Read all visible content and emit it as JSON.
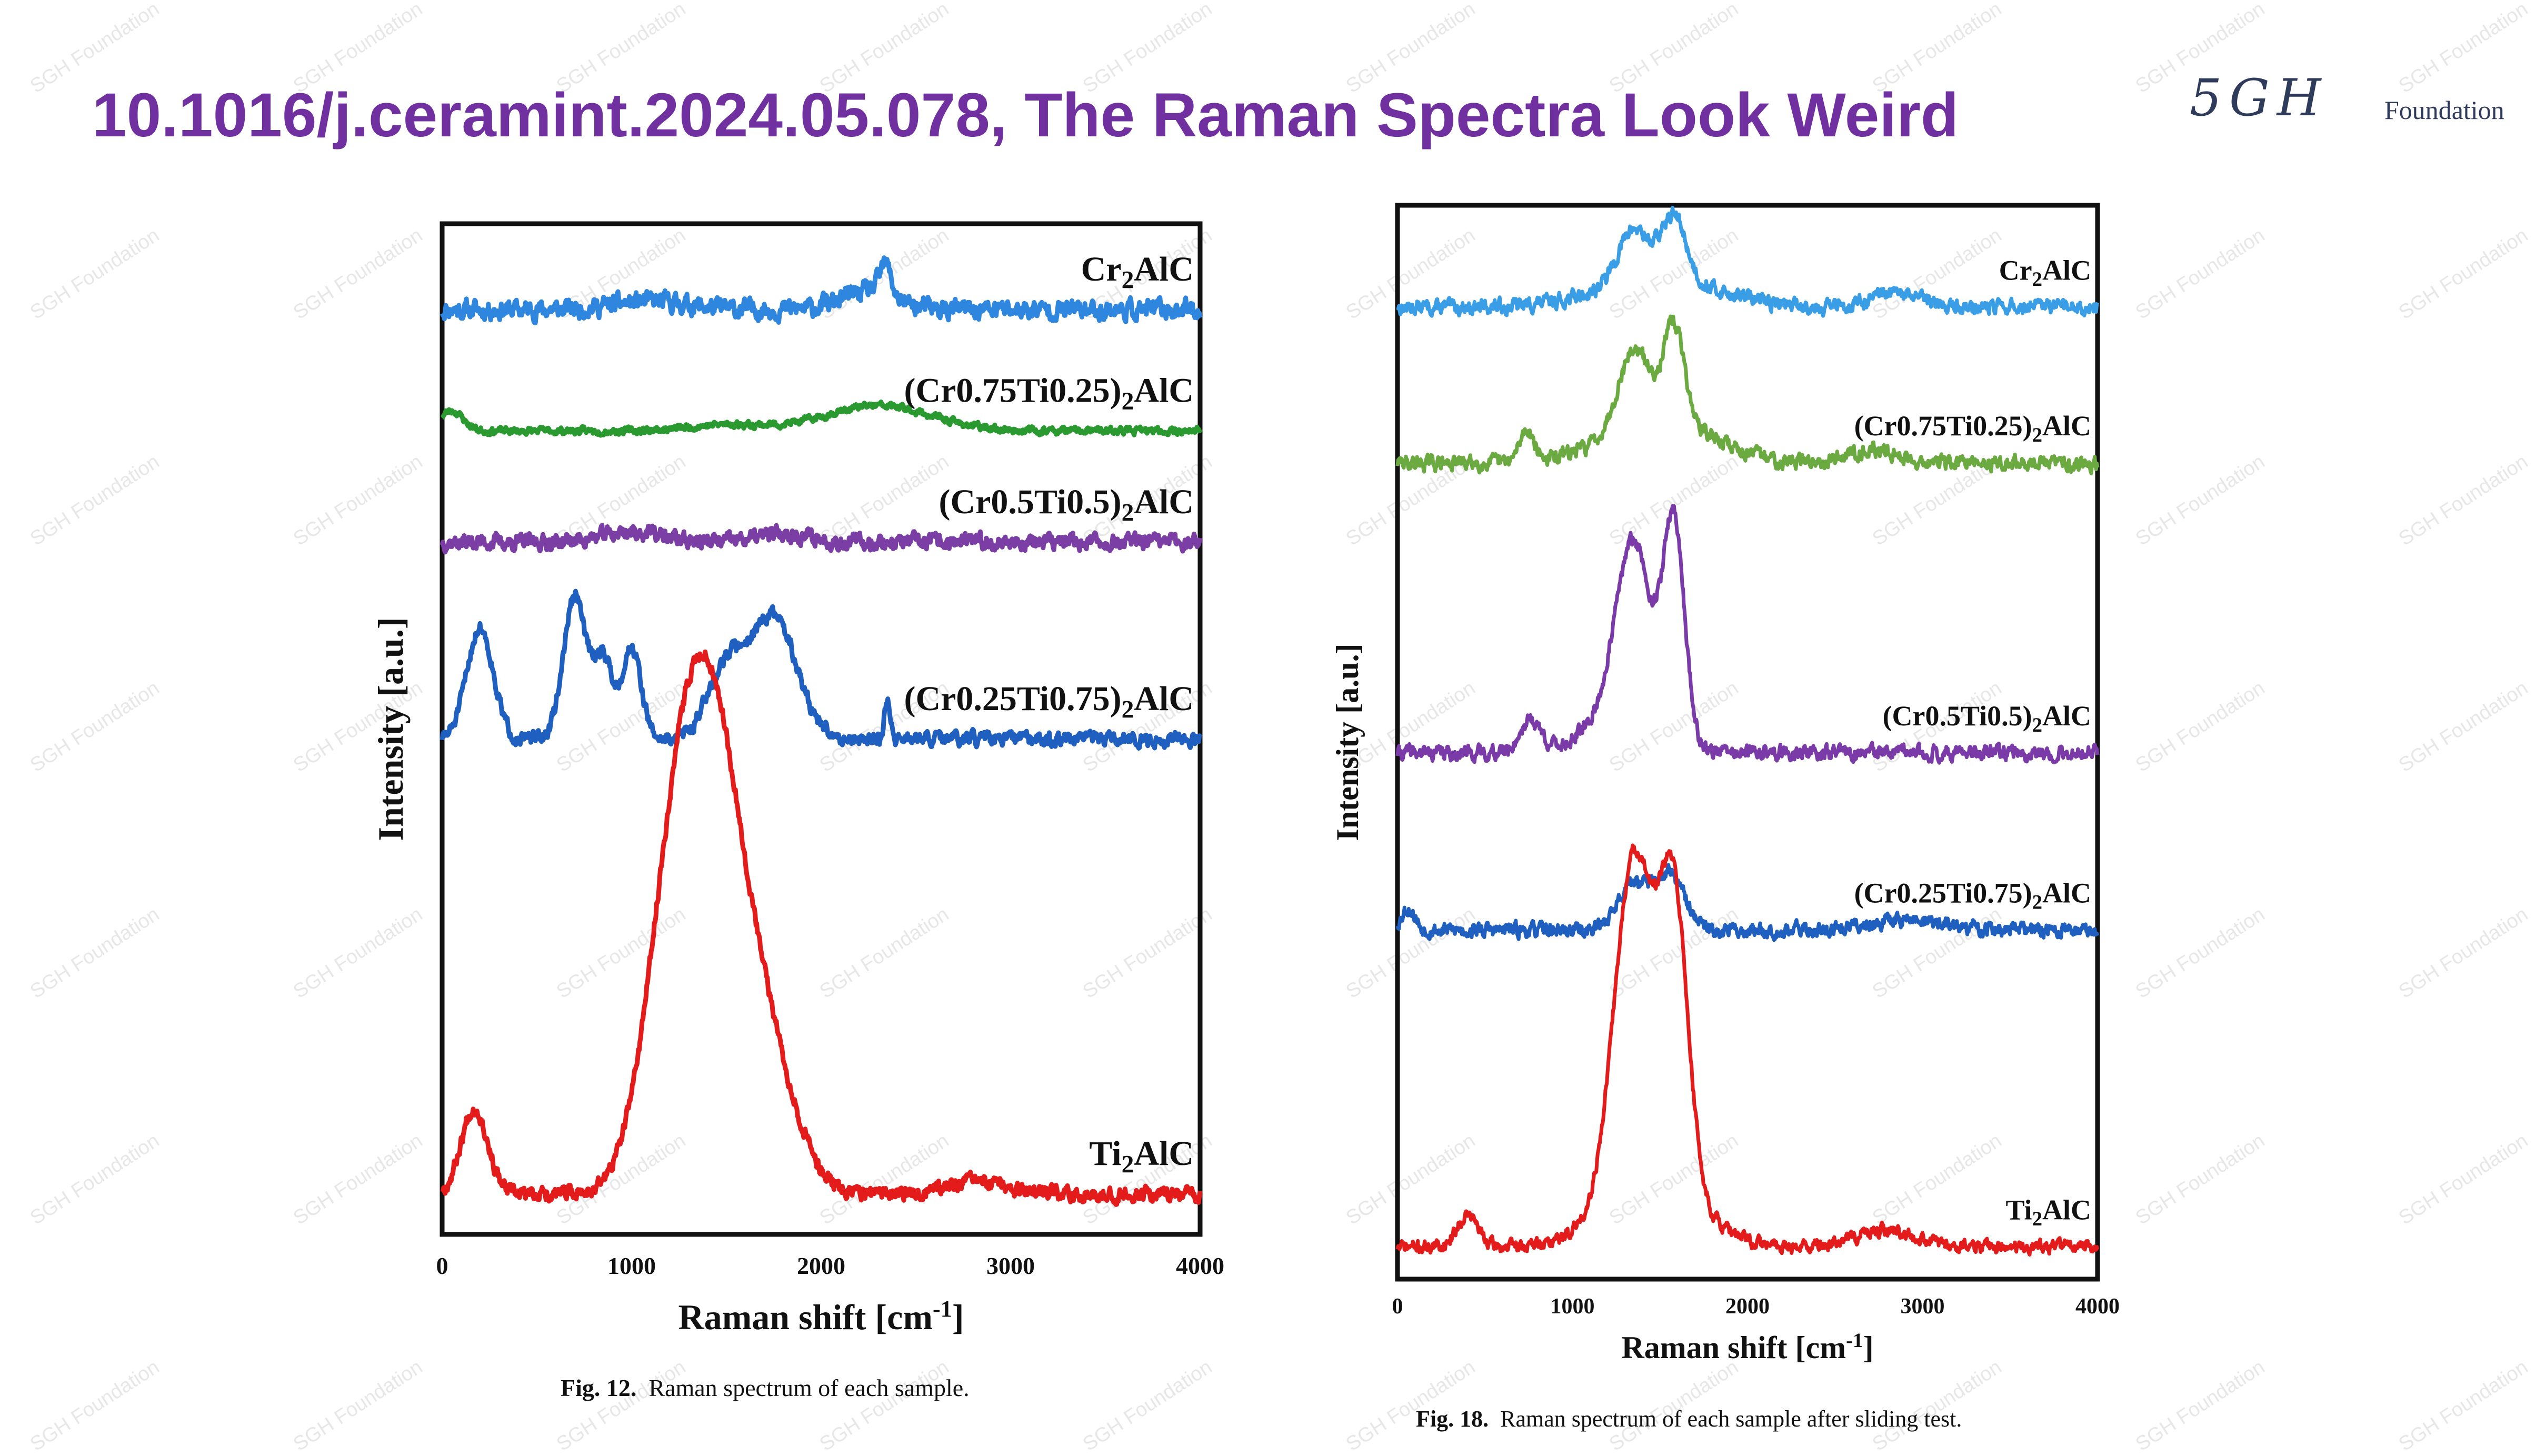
{
  "header": {
    "title": "10.1016/j.ceramint.2024.05.078, The Raman Spectra Look Weird",
    "logo_mark": "5GH",
    "logo_word": "Foundation"
  },
  "watermark_text": "SGH Foundation",
  "chart_data": [
    {
      "type": "line",
      "caption_label": "Fig. 12.",
      "caption_text": "Raman spectrum of each sample.",
      "xlabel": "Raman shift [cm",
      "xlabel_sup": "-1",
      "xlabel_end": "]",
      "ylabel": "Intensity [a.u.]",
      "xlim": [
        0,
        4000
      ],
      "xticks": [
        0,
        1000,
        2000,
        3000,
        4000
      ],
      "grid": false,
      "series": [
        {
          "name_parts": [
            "Cr",
            "2",
            "AlC"
          ],
          "color": "#2e86de",
          "baseline": 0.915,
          "noise": 0.011,
          "seed": 11,
          "peaks": [
            [
              2250,
              0.018,
              140
            ],
            [
              2340,
              0.03,
              30
            ],
            [
              1100,
              0.008,
              200
            ]
          ]
        },
        {
          "name_parts": [
            "(Cr0.75Ti0.25)",
            "2",
            "AlC"
          ],
          "color": "#2a9a30",
          "baseline": 0.795,
          "noise": 0.004,
          "seed": 23,
          "peaks": [
            [
              50,
              0.02,
              60
            ],
            [
              2300,
              0.025,
              280
            ],
            [
              1500,
              0.006,
              200
            ]
          ]
        },
        {
          "name_parts": [
            "(Cr0.5Ti0.5)",
            "2",
            "AlC"
          ],
          "color": "#7b3ea5",
          "baseline": 0.685,
          "noise": 0.009,
          "seed": 37,
          "peaks": [
            [
              1000,
              0.01,
              160
            ],
            [
              1800,
              0.008,
              140
            ]
          ]
        },
        {
          "name_parts": [
            "(Cr0.25Ti0.75)",
            "2",
            "AlC"
          ],
          "color": "#1f5fbf",
          "baseline": 0.49,
          "noise": 0.008,
          "seed": 51,
          "peaks": [
            [
              200,
              0.11,
              70
            ],
            [
              700,
              0.14,
              60
            ],
            [
              850,
              0.08,
              50
            ],
            [
              1000,
              0.09,
              50
            ],
            [
              1500,
              0.07,
              100
            ],
            [
              1750,
              0.12,
              120
            ],
            [
              2350,
              0.04,
              15
            ]
          ]
        },
        {
          "name_parts": [
            "Ti",
            "2",
            "AlC"
          ],
          "color": "#e31b1b",
          "baseline": 0.04,
          "noise": 0.008,
          "seed": 67,
          "peaks": [
            [
              170,
              0.085,
              70
            ],
            [
              1250,
              0.33,
              160
            ],
            [
              1450,
              0.31,
              150
            ],
            [
              1700,
              0.14,
              160
            ],
            [
              2800,
              0.012,
              150
            ]
          ]
        }
      ]
    },
    {
      "type": "line",
      "caption_label": "Fig. 18.",
      "caption_text": "Raman spectrum of each sample after sliding test.",
      "xlabel": "Raman shift [cm",
      "xlabel_sup": "-1",
      "xlabel_end": "]",
      "ylabel": "Intensity [a.u.]",
      "xlim": [
        0,
        4000
      ],
      "xticks": [
        0,
        1000,
        2000,
        3000,
        4000
      ],
      "grid": false,
      "series": [
        {
          "name_parts": [
            "Cr",
            "2",
            "AlC"
          ],
          "color": "#3a9ee6",
          "baseline": 0.905,
          "noise": 0.008,
          "seed": 13,
          "peaks": [
            [
              1350,
              0.05,
              90
            ],
            [
              1580,
              0.06,
              70
            ],
            [
              1500,
              0.025,
              350
            ],
            [
              2850,
              0.012,
              150
            ]
          ]
        },
        {
          "name_parts": [
            "(Cr0.75Ti0.25)",
            "2",
            "AlC"
          ],
          "color": "#6aaa40",
          "baseline": 0.76,
          "noise": 0.008,
          "seed": 29,
          "peaks": [
            [
              740,
              0.03,
              40
            ],
            [
              1350,
              0.07,
              90
            ],
            [
              1580,
              0.09,
              60
            ],
            [
              1500,
              0.04,
              300
            ],
            [
              2700,
              0.012,
              150
            ]
          ]
        },
        {
          "name_parts": [
            "(Cr0.5Ti0.5)",
            "2",
            "AlC"
          ],
          "color": "#7a3aa8",
          "baseline": 0.49,
          "noise": 0.008,
          "seed": 41,
          "peaks": [
            [
              760,
              0.03,
              60
            ],
            [
              1350,
              0.16,
              100
            ],
            [
              1580,
              0.2,
              60
            ],
            [
              1300,
              0.04,
              200
            ]
          ]
        },
        {
          "name_parts": [
            "(Cr0.25Ti0.75)",
            "2",
            "AlC"
          ],
          "color": "#1f5fbf",
          "baseline": 0.325,
          "noise": 0.008,
          "seed": 53,
          "peaks": [
            [
              60,
              0.02,
              40
            ],
            [
              1350,
              0.045,
              90
            ],
            [
              1560,
              0.05,
              80
            ],
            [
              2900,
              0.01,
              200
            ]
          ]
        },
        {
          "name_parts": [
            "Ti",
            "2",
            "AlC"
          ],
          "color": "#e31b1b",
          "baseline": 0.03,
          "noise": 0.007,
          "seed": 71,
          "peaks": [
            [
              400,
              0.03,
              60
            ],
            [
              1350,
              0.3,
              110
            ],
            [
              1580,
              0.26,
              80
            ],
            [
              1450,
              0.07,
              250
            ],
            [
              2800,
              0.015,
              180
            ]
          ]
        }
      ]
    }
  ]
}
